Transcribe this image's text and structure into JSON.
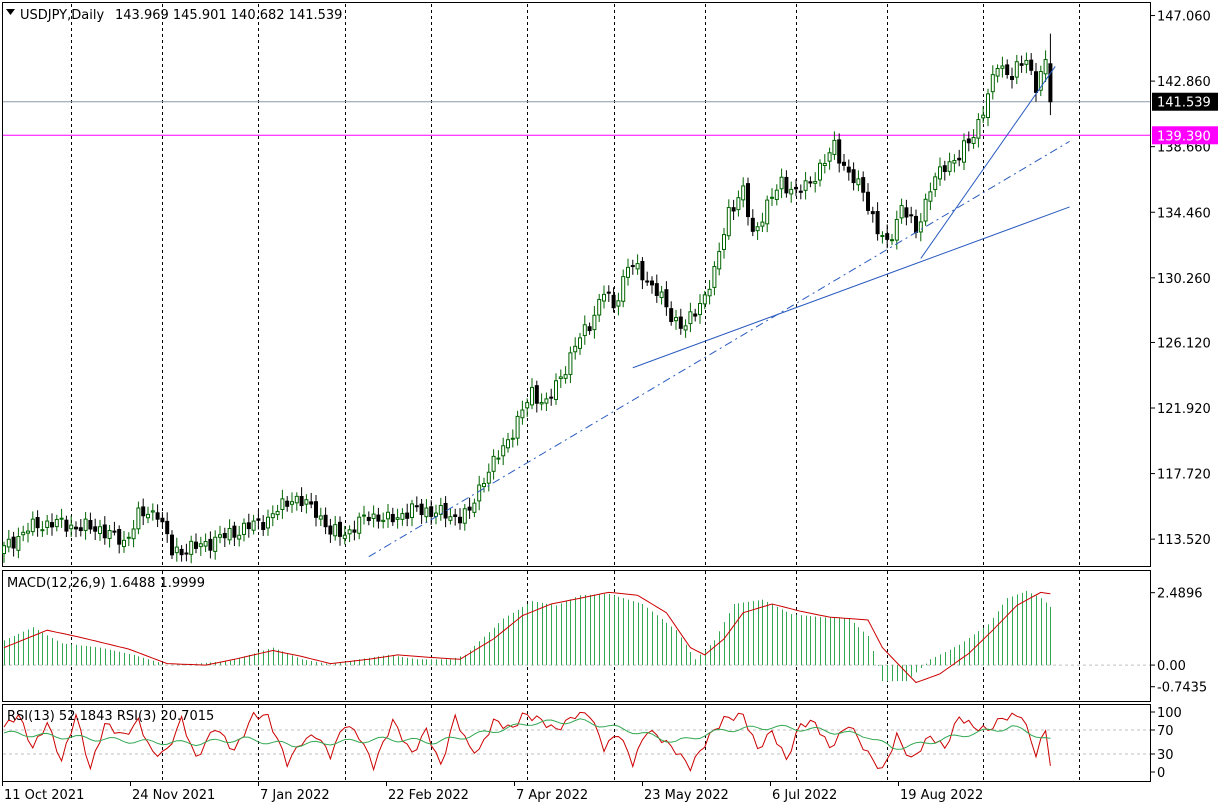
{
  "chart_data": {
    "type": "candlestick",
    "title": "USDJPY,Daily",
    "ohlc_text": "143.969 145.901 140.682 141.539",
    "price_axis_ticks": [
      "147.060",
      "142.860",
      "138.660",
      "134.460",
      "130.260",
      "126.120",
      "121.920",
      "117.720",
      "113.520"
    ],
    "price_range": [
      111.8,
      147.8
    ],
    "current_price": {
      "value": 141.539,
      "label": "141.539",
      "color": "#000000"
    },
    "alert_line": {
      "value": 139.39,
      "label": "139.390",
      "color": "#ff00ff"
    },
    "date_labels": [
      "11 Oct 2021",
      "24 Nov 2021",
      "7 Jan 2022",
      "22 Feb 2022",
      "7 Apr 2022",
      "23 May 2022",
      "6 Jul 2022",
      "19 Aug 2022"
    ],
    "bull_color": "#006400",
    "bear_color": "#000000",
    "close_path": [
      [
        0,
        112.9
      ],
      [
        5,
        114.2
      ],
      [
        10,
        114.6
      ],
      [
        15,
        114.3
      ],
      [
        20,
        114.2
      ],
      [
        25,
        113.3
      ],
      [
        28,
        115.0
      ],
      [
        32,
        115.3
      ],
      [
        35,
        112.7
      ],
      [
        40,
        113.0
      ],
      [
        45,
        113.6
      ],
      [
        50,
        114.2
      ],
      [
        55,
        114.8
      ],
      [
        60,
        116.2
      ],
      [
        65,
        115.4
      ],
      [
        68,
        113.9
      ],
      [
        72,
        114.0
      ],
      [
        76,
        115.1
      ],
      [
        80,
        114.7
      ],
      [
        85,
        115.4
      ],
      [
        90,
        115.3
      ],
      [
        93,
        114.9
      ],
      [
        97,
        115.2
      ],
      [
        100,
        117.5
      ],
      [
        104,
        119.3
      ],
      [
        107,
        121.1
      ],
      [
        110,
        122.9
      ],
      [
        113,
        122.2
      ],
      [
        116,
        123.9
      ],
      [
        119,
        125.9
      ],
      [
        122,
        127.3
      ],
      [
        125,
        129.4
      ],
      [
        127,
        128.3
      ],
      [
        130,
        131.1
      ],
      [
        133,
        130.5
      ],
      [
        136,
        129.4
      ],
      [
        139,
        127.8
      ],
      [
        142,
        127.1
      ],
      [
        145,
        128.6
      ],
      [
        148,
        130.5
      ],
      [
        151,
        134.6
      ],
      [
        154,
        135.7
      ],
      [
        156,
        133.1
      ],
      [
        159,
        134.8
      ],
      [
        162,
        136.5
      ],
      [
        165,
        135.6
      ],
      [
        168,
        136.5
      ],
      [
        171,
        137.6
      ],
      [
        173,
        138.8
      ],
      [
        176,
        136.8
      ],
      [
        179,
        135.9
      ],
      [
        182,
        133.2
      ],
      [
        184,
        132.4
      ],
      [
        187,
        134.8
      ],
      [
        190,
        133.3
      ],
      [
        193,
        136.0
      ],
      [
        196,
        137.5
      ],
      [
        199,
        138.0
      ],
      [
        202,
        139.5
      ],
      [
        205,
        141.8
      ],
      [
        207,
        144.0
      ],
      [
        210,
        143.2
      ],
      [
        213,
        144.3
      ],
      [
        215,
        142.6
      ],
      [
        217,
        143.9
      ],
      [
        218,
        141.5
      ]
    ],
    "candle_count": 219,
    "trendlines": [
      {
        "style": "solid",
        "from": [
          131,
          124.5
        ],
        "to": [
          222,
          134.8
        ]
      },
      {
        "style": "dash-dot",
        "from": [
          76,
          112.4
        ],
        "to": [
          222,
          139.0
        ]
      },
      {
        "style": "solid",
        "from": [
          191,
          131.5
        ],
        "to": [
          219,
          143.8
        ]
      }
    ],
    "vertical_grid_days": [
      14,
      33,
      53,
      71,
      89,
      109,
      127,
      146,
      165,
      184,
      204,
      224
    ],
    "macd": {
      "label": "MACD(12,26,9) 1.6488 1.9999",
      "ticks": [
        "2.4896",
        "0.00",
        "-0.7435"
      ],
      "range": [
        -1.2,
        3.2
      ],
      "hist_color": "#32a852",
      "signal_color": "#cc0000",
      "hist_path": [
        [
          0,
          0.85
        ],
        [
          6,
          1.3
        ],
        [
          12,
          0.75
        ],
        [
          20,
          0.6
        ],
        [
          27,
          0.35
        ],
        [
          34,
          0.0
        ],
        [
          40,
          0.05
        ],
        [
          47,
          0.15
        ],
        [
          56,
          0.6
        ],
        [
          62,
          0.2
        ],
        [
          68,
          0.02
        ],
        [
          74,
          0.2
        ],
        [
          80,
          0.35
        ],
        [
          86,
          0.2
        ],
        [
          93,
          0.2
        ],
        [
          96,
          0.35
        ],
        [
          104,
          1.6
        ],
        [
          110,
          2.2
        ],
        [
          115,
          2.05
        ],
        [
          120,
          2.4
        ],
        [
          126,
          2.45
        ],
        [
          133,
          2.1
        ],
        [
          140,
          1.2
        ],
        [
          144,
          0.2
        ],
        [
          148,
          0.85
        ],
        [
          152,
          2.1
        ],
        [
          158,
          2.25
        ],
        [
          164,
          1.75
        ],
        [
          170,
          1.65
        ],
        [
          176,
          1.6
        ],
        [
          180,
          1.0
        ],
        [
          183,
          -0.55
        ],
        [
          188,
          -0.55
        ],
        [
          193,
          0.2
        ],
        [
          199,
          0.7
        ],
        [
          205,
          1.4
        ],
        [
          209,
          2.3
        ],
        [
          213,
          2.55
        ],
        [
          216,
          2.3
        ],
        [
          218,
          2.0
        ]
      ],
      "signal_path": [
        [
          0,
          0.6
        ],
        [
          9,
          1.2
        ],
        [
          16,
          0.95
        ],
        [
          26,
          0.55
        ],
        [
          34,
          0.05
        ],
        [
          42,
          0.0
        ],
        [
          48,
          0.2
        ],
        [
          56,
          0.5
        ],
        [
          62,
          0.3
        ],
        [
          68,
          0.05
        ],
        [
          76,
          0.2
        ],
        [
          82,
          0.35
        ],
        [
          90,
          0.25
        ],
        [
          95,
          0.2
        ],
        [
          102,
          0.9
        ],
        [
          108,
          1.7
        ],
        [
          114,
          2.1
        ],
        [
          120,
          2.3
        ],
        [
          126,
          2.5
        ],
        [
          132,
          2.4
        ],
        [
          138,
          1.8
        ],
        [
          143,
          0.6
        ],
        [
          146,
          0.35
        ],
        [
          150,
          0.9
        ],
        [
          154,
          1.8
        ],
        [
          160,
          2.1
        ],
        [
          166,
          1.85
        ],
        [
          172,
          1.65
        ],
        [
          180,
          1.55
        ],
        [
          183,
          0.6
        ],
        [
          190,
          -0.6
        ],
        [
          195,
          -0.3
        ],
        [
          201,
          0.4
        ],
        [
          206,
          1.2
        ],
        [
          211,
          2.05
        ],
        [
          216,
          2.5
        ],
        [
          218,
          2.45
        ]
      ]
    },
    "rsi": {
      "label": "RSI(13) 52.1843  RSI(3) 20.7015",
      "ticks": [
        "100",
        "70",
        "30",
        "0"
      ],
      "levels": [
        70,
        30
      ],
      "fast_color": "#cc0000",
      "slow_color": "#32a852",
      "fast_path": [
        [
          0,
          75
        ],
        [
          3,
          95
        ],
        [
          6,
          40
        ],
        [
          9,
          82
        ],
        [
          12,
          18
        ],
        [
          15,
          95
        ],
        [
          18,
          5
        ],
        [
          21,
          80
        ],
        [
          25,
          60
        ],
        [
          28,
          85
        ],
        [
          31,
          30
        ],
        [
          34,
          35
        ],
        [
          37,
          88
        ],
        [
          40,
          22
        ],
        [
          44,
          75
        ],
        [
          48,
          35
        ],
        [
          52,
          95
        ],
        [
          55,
          92
        ],
        [
          59,
          15
        ],
        [
          62,
          50
        ],
        [
          65,
          62
        ],
        [
          68,
          28
        ],
        [
          71,
          80
        ],
        [
          74,
          60
        ],
        [
          77,
          10
        ],
        [
          81,
          85
        ],
        [
          85,
          30
        ],
        [
          88,
          70
        ],
        [
          91,
          10
        ],
        [
          94,
          92
        ],
        [
          97,
          40
        ],
        [
          99,
          35
        ],
        [
          102,
          85
        ],
        [
          106,
          72
        ],
        [
          108,
          95
        ],
        [
          111,
          90
        ],
        [
          115,
          70
        ],
        [
          119,
          95
        ],
        [
          122,
          97
        ],
        [
          125,
          40
        ],
        [
          128,
          65
        ],
        [
          131,
          15
        ],
        [
          134,
          70
        ],
        [
          137,
          55
        ],
        [
          140,
          35
        ],
        [
          143,
          8
        ],
        [
          147,
          60
        ],
        [
          150,
          88
        ],
        [
          154,
          95
        ],
        [
          157,
          38
        ],
        [
          160,
          68
        ],
        [
          163,
          20
        ],
        [
          166,
          80
        ],
        [
          169,
          82
        ],
        [
          172,
          40
        ],
        [
          176,
          80
        ],
        [
          180,
          30
        ],
        [
          183,
          2
        ],
        [
          186,
          60
        ],
        [
          189,
          20
        ],
        [
          193,
          60
        ],
        [
          196,
          40
        ],
        [
          199,
          92
        ],
        [
          202,
          75
        ],
        [
          205,
          70
        ],
        [
          208,
          90
        ],
        [
          212,
          95
        ],
        [
          215,
          30
        ],
        [
          217,
          70
        ],
        [
          218,
          15
        ]
      ],
      "slow_path": [
        [
          0,
          65
        ],
        [
          10,
          60
        ],
        [
          20,
          55
        ],
        [
          30,
          50
        ],
        [
          40,
          48
        ],
        [
          50,
          55
        ],
        [
          60,
          45
        ],
        [
          70,
          50
        ],
        [
          80,
          55
        ],
        [
          90,
          50
        ],
        [
          100,
          65
        ],
        [
          110,
          82
        ],
        [
          120,
          85
        ],
        [
          130,
          70
        ],
        [
          140,
          50
        ],
        [
          150,
          70
        ],
        [
          160,
          75
        ],
        [
          170,
          70
        ],
        [
          180,
          60
        ],
        [
          185,
          40
        ],
        [
          190,
          45
        ],
        [
          200,
          62
        ],
        [
          210,
          75
        ],
        [
          215,
          62
        ],
        [
          218,
          52
        ]
      ]
    }
  }
}
